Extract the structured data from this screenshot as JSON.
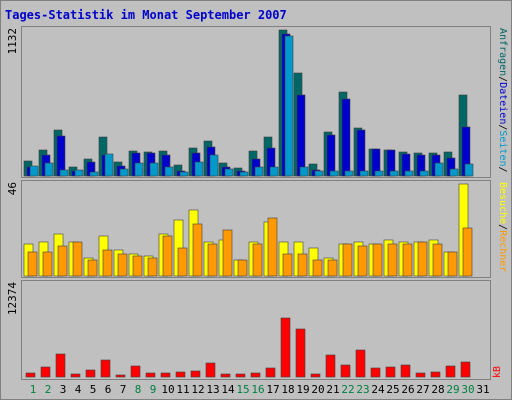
{
  "chart_data": [
    {
      "type": "bar",
      "title": "Tages-Statistik im Monat September 2007",
      "ymax_label": "1132",
      "ylim": [
        0,
        1132
      ],
      "categories": [
        "1",
        "2",
        "3",
        "4",
        "5",
        "6",
        "7",
        "8",
        "9",
        "10",
        "11",
        "12",
        "13",
        "14",
        "15",
        "16",
        "17",
        "18",
        "19",
        "20",
        "21",
        "22",
        "23",
        "24",
        "25",
        "26",
        "27",
        "28",
        "29",
        "30",
        "31"
      ],
      "weekend_days": [
        "1",
        "2",
        "8",
        "9",
        "15",
        "16",
        "22",
        "23",
        "29",
        "30"
      ],
      "series": [
        {
          "name": "Anfragen",
          "color": "#006666",
          "values": [
            120,
            205,
            358,
            70,
            130,
            305,
            108,
            190,
            185,
            190,
            85,
            215,
            270,
            100,
            60,
            195,
            305,
            1132,
            800,
            90,
            338,
            652,
            372,
            210,
            205,
            185,
            180,
            180,
            185,
            625,
            0
          ]
        },
        {
          "name": "Dateien",
          "color": "#0000CC",
          "values": [
            70,
            160,
            310,
            40,
            110,
            160,
            80,
            180,
            175,
            160,
            40,
            180,
            225,
            70,
            40,
            130,
            215,
            1100,
            630,
            50,
            315,
            600,
            360,
            210,
            200,
            170,
            160,
            160,
            140,
            380,
            0
          ]
        },
        {
          "name": "Seiten",
          "color": "#0099CC",
          "values": [
            75,
            100,
            45,
            45,
            30,
            170,
            55,
            100,
            100,
            70,
            30,
            110,
            160,
            55,
            30,
            70,
            70,
            1085,
            70,
            40,
            40,
            40,
            40,
            40,
            40,
            40,
            40,
            100,
            55,
            90,
            0
          ]
        }
      ]
    },
    {
      "type": "bar",
      "ymax_label": "46",
      "ylim": [
        0,
        46
      ],
      "categories": [
        "1",
        "2",
        "3",
        "4",
        "5",
        "6",
        "7",
        "8",
        "9",
        "10",
        "11",
        "12",
        "13",
        "14",
        "15",
        "16",
        "17",
        "18",
        "19",
        "20",
        "21",
        "22",
        "23",
        "24",
        "25",
        "26",
        "27",
        "28",
        "29",
        "30",
        "31"
      ],
      "series": [
        {
          "name": "Besuche",
          "color": "#FFFF00",
          "values": [
            16,
            17,
            21,
            17,
            9,
            20,
            13,
            11,
            10,
            21,
            28,
            33,
            17,
            18,
            8,
            17,
            27,
            17,
            17,
            14,
            9,
            16,
            17,
            16,
            18,
            17,
            17,
            18,
            12,
            46,
            0
          ]
        },
        {
          "name": "Rechner",
          "color": "#FF9900",
          "values": [
            12,
            12,
            15,
            17,
            8,
            13,
            11,
            10,
            9,
            20,
            14,
            26,
            16,
            23,
            8,
            16,
            29,
            11,
            11,
            8,
            8,
            16,
            15,
            16,
            16,
            16,
            17,
            16,
            12,
            24,
            0
          ]
        }
      ]
    },
    {
      "type": "bar",
      "ymax_label": "12374",
      "ylim": [
        0,
        12374
      ],
      "categories": [
        "1",
        "2",
        "3",
        "4",
        "5",
        "6",
        "7",
        "8",
        "9",
        "10",
        "11",
        "12",
        "13",
        "14",
        "15",
        "16",
        "17",
        "18",
        "19",
        "20",
        "21",
        "22",
        "23",
        "24",
        "25",
        "26",
        "27",
        "28",
        "29",
        "30",
        "31"
      ],
      "series": [
        {
          "name": "kB",
          "color": "#FF0000",
          "values": [
            540,
            1380,
            3130,
            340,
            1000,
            2280,
            270,
            1480,
            500,
            500,
            650,
            870,
            1850,
            420,
            400,
            540,
            1230,
            7950,
            6510,
            340,
            2990,
            1620,
            3580,
            1250,
            1320,
            1620,
            560,
            680,
            1450,
            2080,
            0
          ]
        }
      ]
    }
  ],
  "colors": {
    "background": "#FFFFFF",
    "frame": "#C0C0C0",
    "panel": "#C0C0C0",
    "title": "#0000CC",
    "weekday": "#000000",
    "weekend": "#008040"
  }
}
